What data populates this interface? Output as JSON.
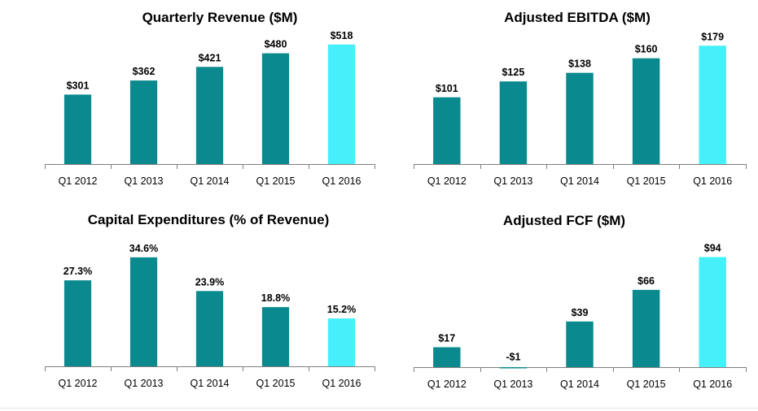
{
  "colors": {
    "bar": "#0a8a8f",
    "highlight": "#45f0fa",
    "axis": "#7f7f7f"
  },
  "chart_data": [
    {
      "type": "bar",
      "title": "Quarterly Revenue ($M)",
      "categories": [
        "Q1 2012",
        "Q1 2013",
        "Q1 2014",
        "Q1 2015",
        "Q1 2016"
      ],
      "values": [
        301,
        362,
        421,
        480,
        518
      ],
      "labels": [
        "$301",
        "$362",
        "$421",
        "$480",
        "$518"
      ],
      "highlight_index": 4,
      "ylim": [
        0,
        570
      ],
      "grid": false,
      "legend": "none"
    },
    {
      "type": "bar",
      "title": "Adjusted EBITDA  ($M)",
      "categories": [
        "Q1 2012",
        "Q1 2013",
        "Q1 2014",
        "Q1 2015",
        "Q1 2016"
      ],
      "values": [
        101,
        125,
        138,
        160,
        179
      ],
      "labels": [
        "$101",
        "$125",
        "$138",
        "$160",
        "$179"
      ],
      "highlight_index": 4,
      "ylim": [
        0,
        199
      ],
      "grid": false,
      "legend": "none"
    },
    {
      "type": "bar",
      "title": "Capital Expenditures (% of Revenue)",
      "categories": [
        "Q1 2012",
        "Q1 2013",
        "Q1 2014",
        "Q1 2015",
        "Q1 2016"
      ],
      "values": [
        27.3,
        34.6,
        23.9,
        18.8,
        15.2
      ],
      "labels": [
        "27.3%",
        "34.6%",
        "23.9%",
        "18.8%",
        "15.2%"
      ],
      "highlight_index": 4,
      "ylim": [
        0,
        41
      ],
      "grid": false,
      "legend": "none"
    },
    {
      "type": "bar",
      "title": "Adjusted FCF  ($M)",
      "categories": [
        "Q1 2012",
        "Q1 2013",
        "Q1 2014",
        "Q1 2015",
        "Q1 2016"
      ],
      "values": [
        17,
        -1,
        39,
        66,
        94
      ],
      "labels": [
        "$17",
        "-$1",
        "$39",
        "$66",
        "$94"
      ],
      "highlight_index": 4,
      "ylim": [
        -1,
        110
      ],
      "grid": false,
      "legend": "none"
    }
  ]
}
